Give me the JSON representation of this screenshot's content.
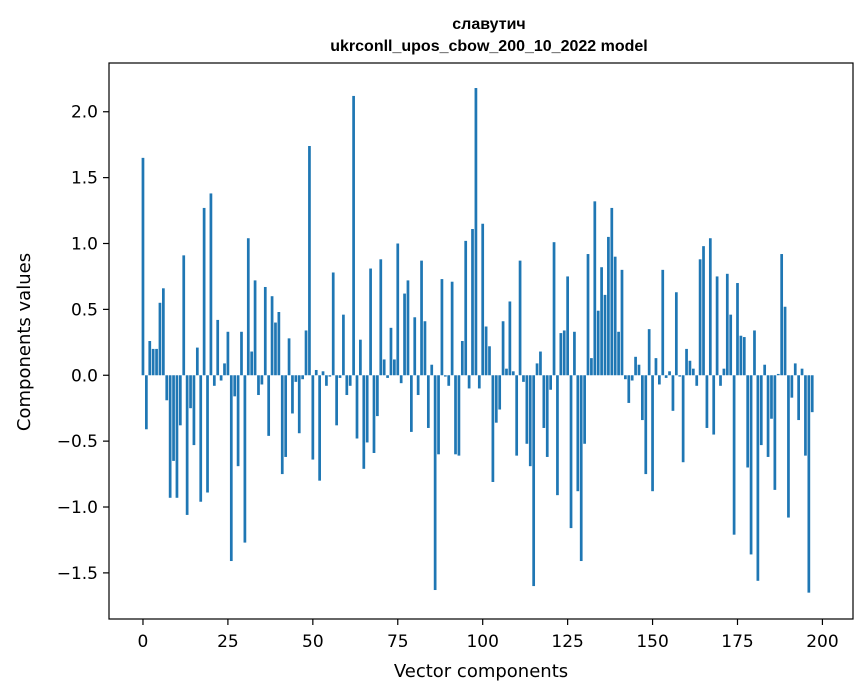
{
  "chart_data": {
    "type": "bar",
    "title": [
      "славутич",
      "ukrconll_upos_cbow_200_10_2022 model"
    ],
    "xlabel": "Vector components",
    "ylabel": "Components values",
    "xlim": [
      -10,
      209
    ],
    "ylim": [
      -1.85,
      2.37
    ],
    "x_ticks": [
      0,
      25,
      50,
      75,
      100,
      125,
      150,
      175,
      200
    ],
    "x_tick_labels": [
      "0",
      "25",
      "50",
      "75",
      "100",
      "125",
      "150",
      "175",
      "200"
    ],
    "y_ticks": [
      -1.5,
      -1.0,
      -0.5,
      0.0,
      0.5,
      1.0,
      1.5,
      2.0
    ],
    "y_tick_labels": [
      "−1.5",
      "−1.0",
      "−0.5",
      "0.0",
      "0.5",
      "1.0",
      "1.5",
      "2.0"
    ],
    "grid": false,
    "bar_color": "#1f77b4",
    "values": [
      1.65,
      -0.41,
      0.26,
      0.2,
      0.2,
      0.55,
      0.66,
      -0.19,
      -0.93,
      -0.65,
      -0.93,
      -0.38,
      0.91,
      -1.06,
      -0.25,
      -0.53,
      0.21,
      -0.96,
      1.27,
      -0.89,
      1.38,
      -0.08,
      0.42,
      -0.04,
      0.09,
      0.33,
      -1.41,
      -0.16,
      -0.69,
      0.33,
      -1.27,
      1.04,
      0.18,
      0.72,
      -0.15,
      -0.07,
      0.67,
      -0.46,
      0.6,
      0.4,
      0.48,
      -0.75,
      -0.62,
      0.28,
      -0.29,
      -0.05,
      -0.44,
      -0.03,
      0.34,
      1.74,
      -0.64,
      0.04,
      -0.8,
      0.03,
      -0.08,
      -0.01,
      0.78,
      -0.38,
      -0.02,
      0.46,
      -0.15,
      -0.08,
      2.12,
      -0.48,
      0.27,
      -0.71,
      -0.51,
      0.81,
      -0.59,
      -0.31,
      0.88,
      0.12,
      -0.02,
      0.36,
      0.12,
      1.0,
      -0.06,
      0.62,
      0.72,
      -0.43,
      0.44,
      -0.15,
      0.87,
      0.41,
      -0.4,
      0.08,
      -1.63,
      -0.6,
      0.73,
      -0.01,
      -0.08,
      0.71,
      -0.6,
      -0.61,
      0.26,
      1.02,
      -0.1,
      1.11,
      2.18,
      -0.1,
      1.15,
      0.37,
      0.22,
      -0.81,
      -0.36,
      -0.26,
      0.41,
      0.05,
      0.56,
      0.03,
      -0.61,
      0.87,
      -0.05,
      -0.52,
      -0.69,
      -1.6,
      0.09,
      0.18,
      -0.4,
      -0.62,
      -0.11,
      1.01,
      -0.91,
      0.32,
      0.34,
      0.75,
      -1.16,
      0.33,
      -0.88,
      -1.41,
      -0.52,
      0.92,
      0.13,
      1.32,
      0.49,
      0.82,
      0.61,
      1.05,
      1.27,
      0.9,
      0.33,
      0.8,
      -0.03,
      -0.21,
      -0.04,
      0.14,
      0.08,
      -0.34,
      -0.75,
      0.35,
      -0.88,
      0.13,
      -0.07,
      0.8,
      -0.02,
      0.03,
      -0.27,
      0.63,
      -0.01,
      -0.66,
      0.2,
      0.11,
      0.05,
      -0.08,
      0.88,
      0.98,
      -0.4,
      1.04,
      -0.45,
      0.75,
      -0.08,
      0.05,
      0.77,
      0.46,
      -1.21,
      0.7,
      0.3,
      0.29,
      -0.7,
      -1.36,
      0.34,
      -1.56,
      -0.53,
      0.08,
      -0.62,
      -0.33,
      -0.87,
      0.01,
      0.92,
      0.52,
      -1.08,
      -0.17,
      0.09,
      -0.34,
      0.05,
      -0.61,
      -1.65,
      -0.28
    ]
  }
}
